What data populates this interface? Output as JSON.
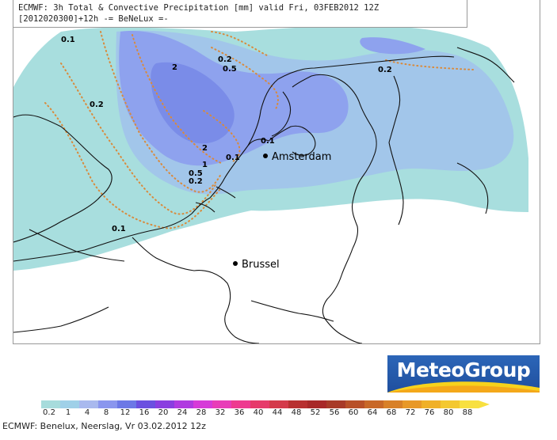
{
  "header": {
    "line1": "ECMWF: 3h Total & Convective Precipitation [mm] valid Fri, 03FEB2012 12Z",
    "line2": "[2012020300]+12h -= BeNeLux =-"
  },
  "cities": [
    {
      "name": "Amsterdam"
    },
    {
      "name": "Brussel"
    }
  ],
  "contour_labels": [
    "0.1",
    "0.2",
    "0.5",
    "2",
    "0.2",
    "0.2",
    "2",
    "0.1",
    "0.1",
    "1",
    "0.5",
    "0.2",
    "0.1"
  ],
  "logo": {
    "text": "MeteoGroup"
  },
  "scale": {
    "labels": [
      "0.2",
      "1",
      "4",
      "8",
      "12",
      "16",
      "20",
      "24",
      "28",
      "32",
      "36",
      "40",
      "44",
      "48",
      "52",
      "56",
      "60",
      "64",
      "68",
      "72",
      "76",
      "80",
      "88"
    ],
    "colors": [
      "#a7dcdc",
      "#9fd0e8",
      "#a9b9ee",
      "#8a96ee",
      "#6c78e6",
      "#6b50e0",
      "#8a3ee0",
      "#b03ae0",
      "#d63ad8",
      "#e83cb8",
      "#ee3a90",
      "#e63a6a",
      "#d43a4a",
      "#b83030",
      "#a82828",
      "#a83a28",
      "#b85028",
      "#c86828",
      "#d88028",
      "#e89828",
      "#f0b028",
      "#f4c830",
      "#f8e040"
    ]
  },
  "footer": {
    "text": "ECMWF: Benelux, Neerslag, Vr 03.02.2012 12z"
  }
}
